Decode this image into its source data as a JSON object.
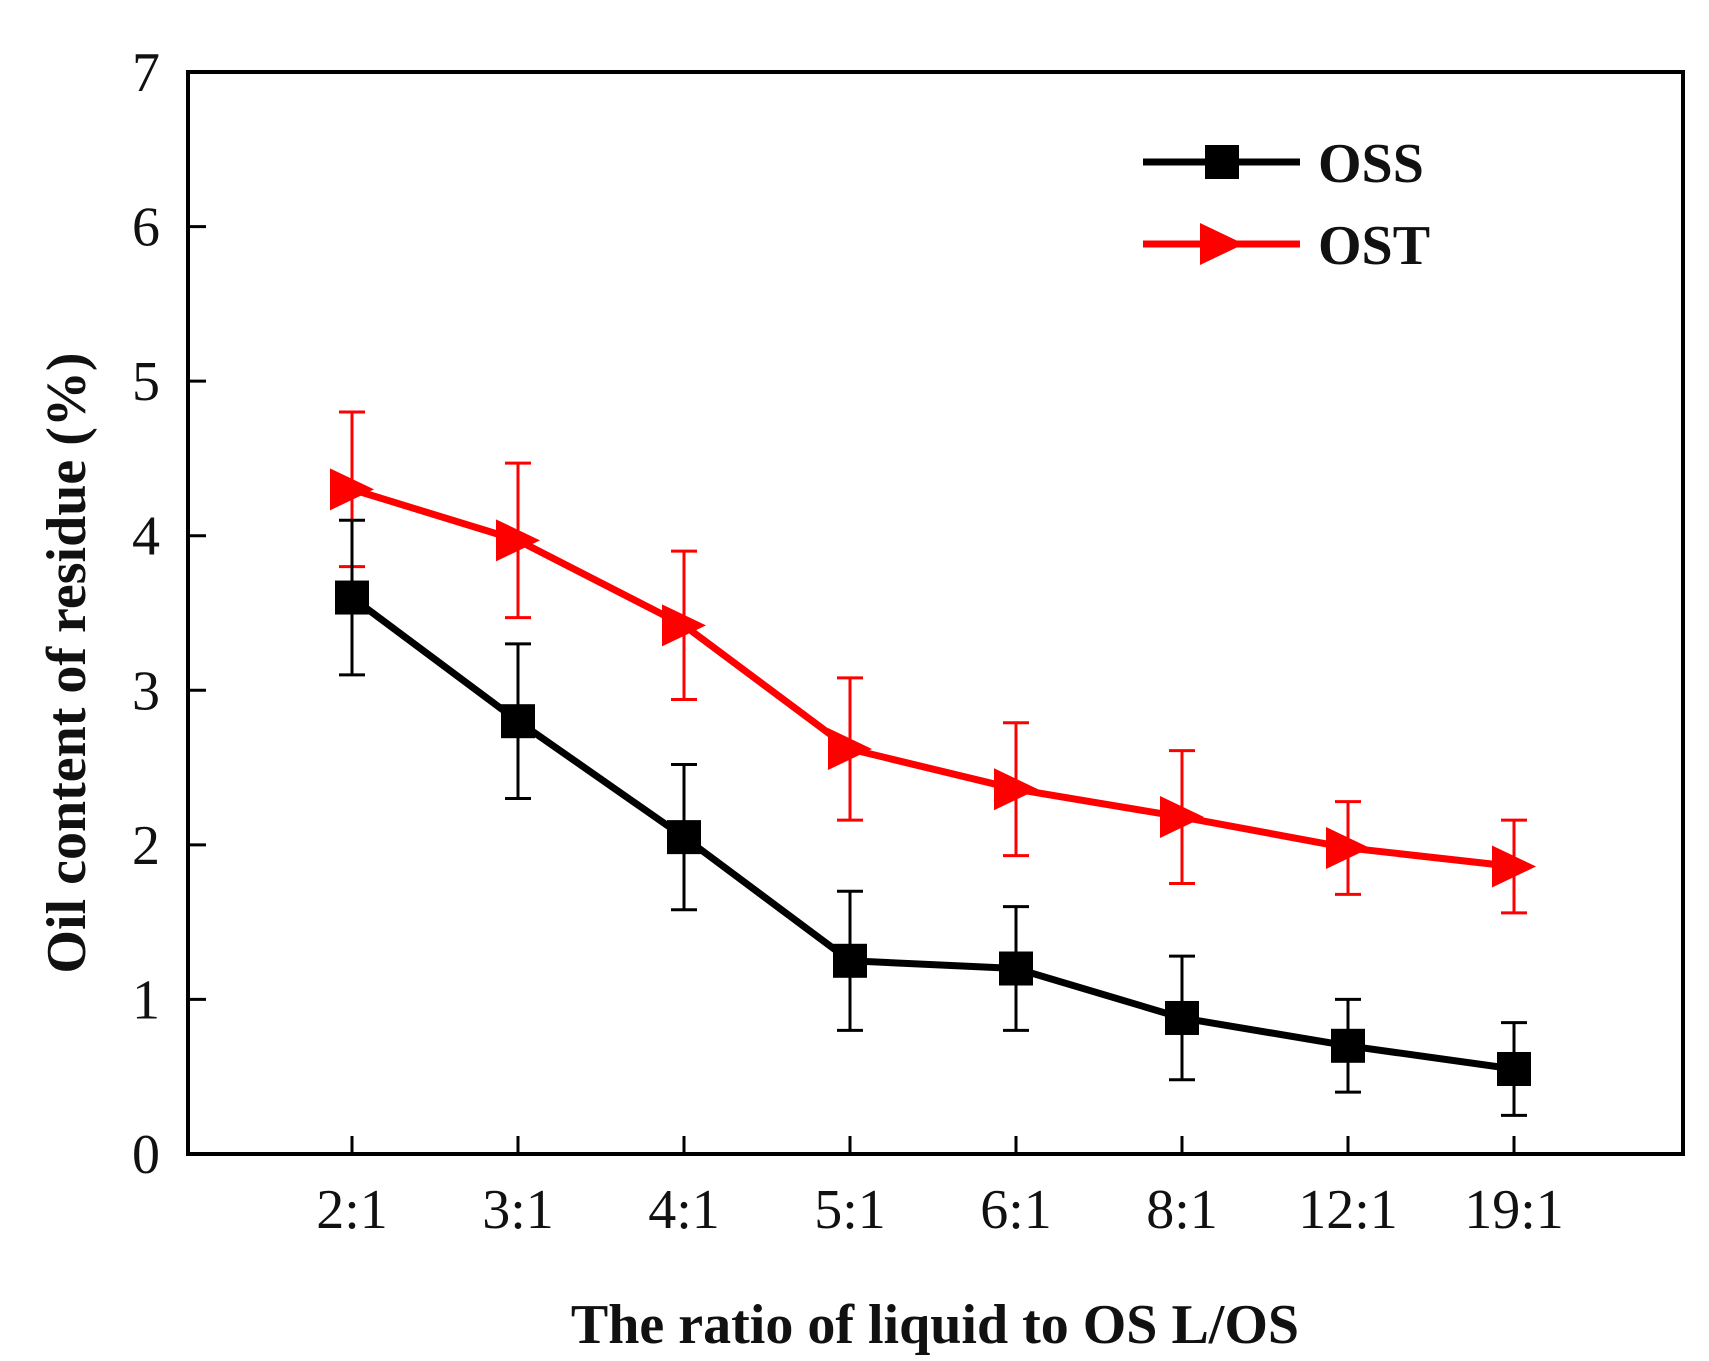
{
  "chart_data": {
    "type": "line",
    "categories": [
      "2:1",
      "3:1",
      "4:1",
      "5:1",
      "6:1",
      "8:1",
      "12:1",
      "19:1"
    ],
    "xlabel": "The ratio of liquid to OS  L/OS",
    "ylabel": "Oil content of residue (%)",
    "ylim": [
      0,
      7
    ],
    "yticks": [
      "0",
      "1",
      "2",
      "3",
      "4",
      "5",
      "6",
      "7"
    ],
    "grid": false,
    "legend_position": "top-right",
    "series": [
      {
        "name": "OSS",
        "color": "#000000",
        "marker": "square",
        "values": [
          3.6,
          2.8,
          2.05,
          1.25,
          1.2,
          0.88,
          0.7,
          0.55
        ],
        "errors": [
          0.5,
          0.5,
          0.47,
          0.45,
          0.4,
          0.4,
          0.3,
          0.3
        ]
      },
      {
        "name": "OST",
        "color": "#ff0000",
        "marker": "triangle-right",
        "values": [
          4.3,
          3.97,
          3.42,
          2.62,
          2.36,
          2.18,
          1.98,
          1.86
        ],
        "errors": [
          0.5,
          0.5,
          0.48,
          0.46,
          0.43,
          0.43,
          0.3,
          0.3
        ]
      }
    ]
  }
}
